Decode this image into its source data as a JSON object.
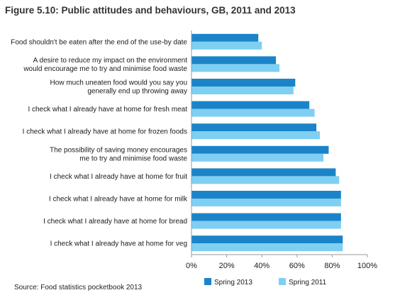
{
  "figure_title": "Figure 5.10: Public attitudes and behaviours, GB, 2011 and 2013",
  "source": "Source: Food statistics pocketbook 2013",
  "colors": {
    "spring_2013": "#1b84c9",
    "spring_2011": "#7fcff2",
    "axis": "#999999"
  },
  "chart_data": {
    "type": "bar",
    "orientation": "horizontal",
    "categories": [
      [
        "Food shouldn't be eaten after the end of the use-by date"
      ],
      [
        "A desire to reduce my impact on the environment",
        "would encourage me to try and minimise food waste"
      ],
      [
        "How much uneaten food would you say you",
        "generally end up throwing away"
      ],
      [
        "I check what I already have at home for fresh meat"
      ],
      [
        "I check what I already have at home for frozen foods"
      ],
      [
        "The possibility of saving money encourages",
        "me to try and minimise food waste"
      ],
      [
        "I check what I already have at home for fruit"
      ],
      [
        "I check what I already have at home for milk"
      ],
      [
        "I check what I already have at home for bread"
      ],
      [
        "I check what I already have at home for veg"
      ]
    ],
    "series": [
      {
        "name": "Spring 2013",
        "values": [
          38,
          48,
          59,
          67,
          71,
          78,
          82,
          85,
          85,
          86
        ]
      },
      {
        "name": "Spring 2011",
        "values": [
          40,
          50,
          58,
          70,
          73,
          75,
          84,
          85,
          85,
          86
        ]
      }
    ],
    "xlim": [
      0,
      100
    ],
    "xticks": [
      "0%",
      "20%",
      "40%",
      "60%",
      "80%",
      "100%"
    ],
    "legend_position": "bottom",
    "grid": false
  }
}
